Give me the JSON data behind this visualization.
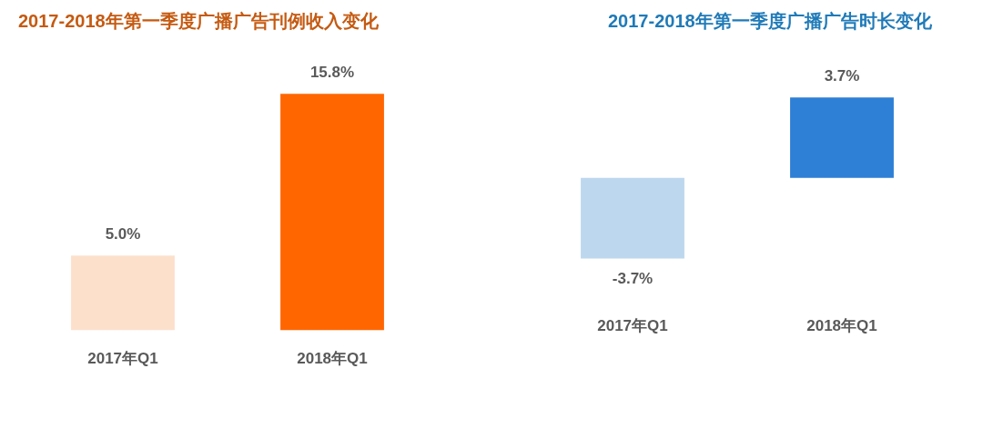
{
  "chart_data": [
    {
      "type": "bar",
      "title": "2017-2018年第一季度广播广告刊例收入变化",
      "categories": [
        "2017年Q1",
        "2018年Q1"
      ],
      "values": [
        5.0,
        15.8
      ],
      "colors": [
        "#fce0cc",
        "#ff6600"
      ],
      "value_labels": [
        "5.0%",
        "15.8%"
      ]
    },
    {
      "type": "bar",
      "title": "2017-2018年第一季度广播广告时长变化",
      "categories": [
        "2017年Q1",
        "2018年Q1"
      ],
      "values": [
        -3.7,
        3.7
      ],
      "colors": [
        "#bdd7ee",
        "#2e7fd6"
      ],
      "value_labels": [
        "-3.7%",
        "3.7%"
      ]
    }
  ]
}
